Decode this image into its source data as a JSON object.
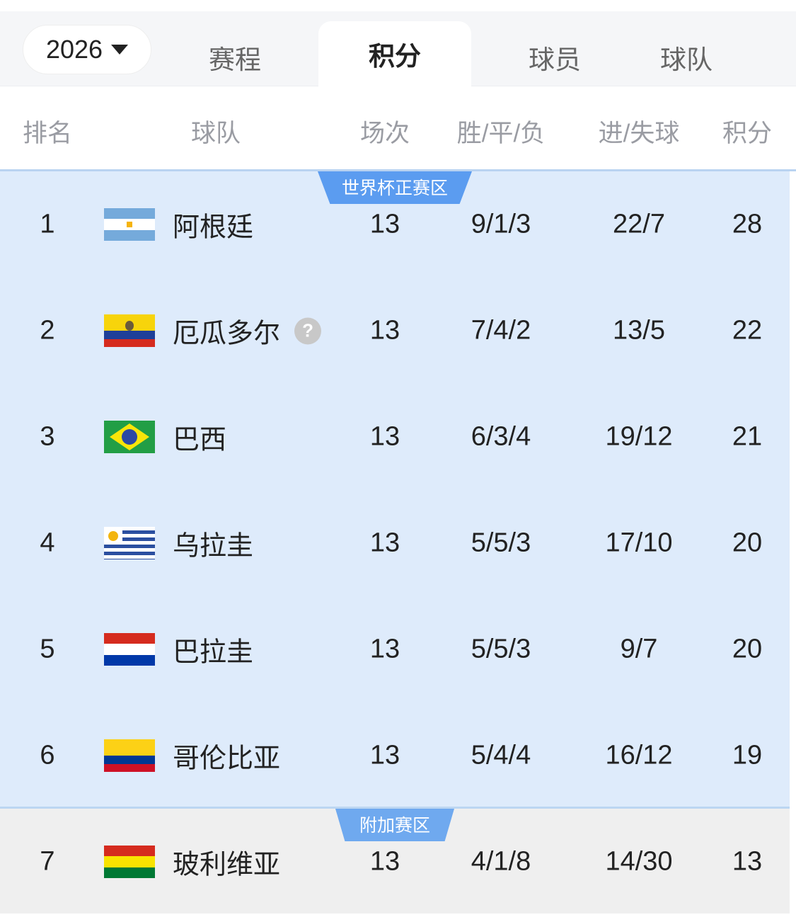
{
  "header": {
    "year": "2026",
    "tabs": [
      {
        "label": "赛程",
        "active": false
      },
      {
        "label": "积分",
        "active": true
      },
      {
        "label": "球员",
        "active": false
      },
      {
        "label": "球队",
        "active": false
      }
    ]
  },
  "columns": [
    "排名",
    "球队",
    "场次",
    "胜/平/负",
    "进/失球",
    "积分"
  ],
  "zones": {
    "direct": {
      "label": "世界杯正赛区",
      "color": "#5b9cf0",
      "background": "#deebfb"
    },
    "playoff": {
      "label": "附加赛区",
      "color": "#6fa9ef",
      "background": "#efefef"
    }
  },
  "rows": [
    {
      "rank": "1",
      "team": "阿根廷",
      "flag": "argentina",
      "played": "13",
      "wdl": "9/1/3",
      "goals": "22/7",
      "points": "28"
    },
    {
      "rank": "2",
      "team": "厄瓜多尔",
      "flag": "ecuador",
      "played": "13",
      "wdl": "7/4/2",
      "goals": "13/5",
      "points": "22",
      "info_icon": "question-icon"
    },
    {
      "rank": "3",
      "team": "巴西",
      "flag": "brazil",
      "played": "13",
      "wdl": "6/3/4",
      "goals": "19/12",
      "points": "21"
    },
    {
      "rank": "4",
      "team": "乌拉圭",
      "flag": "uruguay",
      "played": "13",
      "wdl": "5/5/3",
      "goals": "17/10",
      "points": "20"
    },
    {
      "rank": "5",
      "team": "巴拉圭",
      "flag": "paraguay",
      "played": "13",
      "wdl": "5/5/3",
      "goals": "9/7",
      "points": "20"
    },
    {
      "rank": "6",
      "team": "哥伦比亚",
      "flag": "colombia",
      "played": "13",
      "wdl": "5/4/4",
      "goals": "16/12",
      "points": "19"
    },
    {
      "rank": "7",
      "team": "玻利维亚",
      "flag": "bolivia",
      "played": "13",
      "wdl": "4/1/8",
      "goals": "14/30",
      "points": "13"
    }
  ]
}
